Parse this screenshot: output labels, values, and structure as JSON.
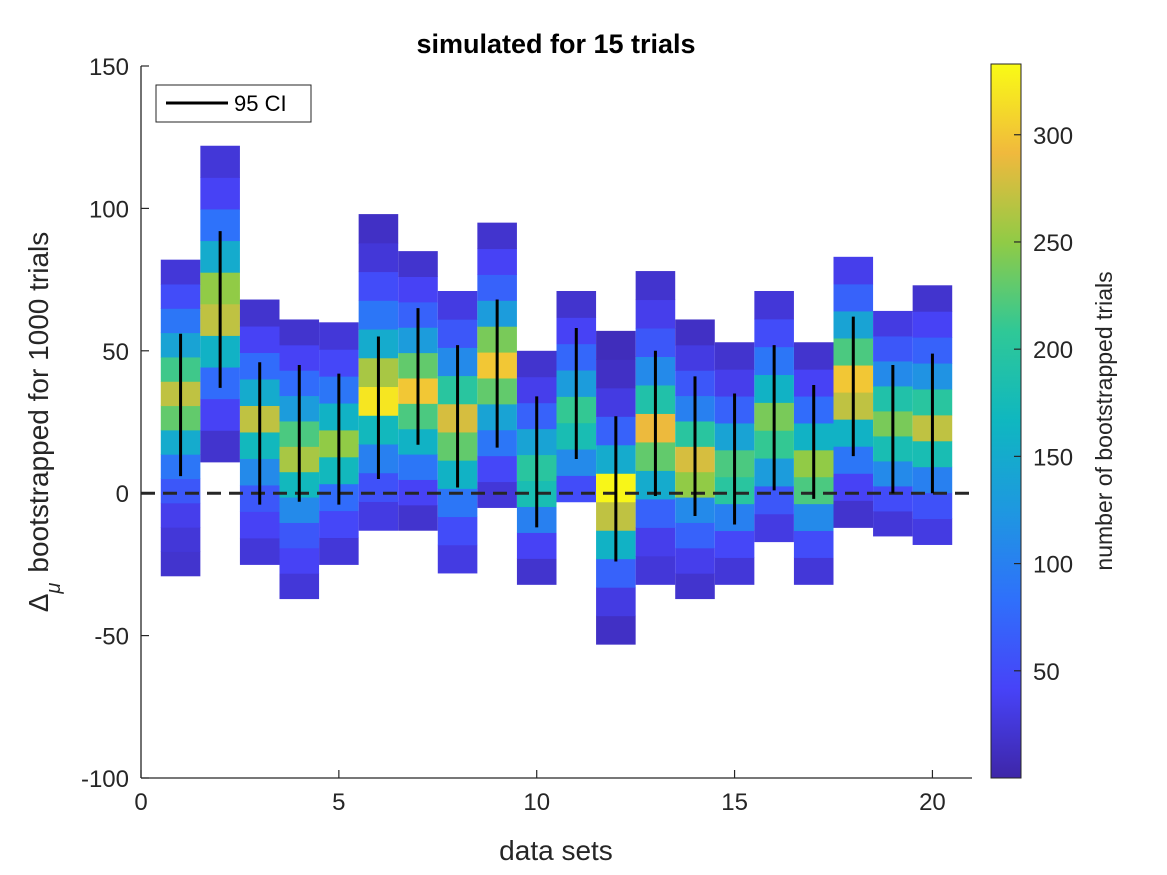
{
  "chart_data": {
    "type": "heatmap",
    "title": "simulated for 15 trials",
    "xlabel": "data sets",
    "ylabel_symbol": "Δ",
    "ylabel_subscript": "μ",
    "ylabel_text": "bootstrapped  for 1000 trials",
    "xlim": [
      0,
      21
    ],
    "ylim": [
      -100,
      150
    ],
    "xticks": [
      0,
      5,
      10,
      15,
      20
    ],
    "yticks": [
      -100,
      -50,
      0,
      50,
      100,
      150
    ],
    "reference_line_y": 0,
    "legend": {
      "label": "95 CI",
      "location": "top-left"
    },
    "colorbar": {
      "label": "number of bootstrapped trials",
      "range": [
        0,
        333
      ],
      "ticks": [
        50,
        100,
        150,
        200,
        250,
        300
      ]
    },
    "bar_width": 1.0,
    "datasets": [
      {
        "x": 1,
        "ymin": -29,
        "ymax": 82,
        "ci": [
          6,
          56
        ],
        "counts": [
          20,
          25,
          35,
          60,
          90,
          150,
          230,
          270,
          215,
          140,
          90,
          50,
          25
        ]
      },
      {
        "x": 2,
        "ymin": 11,
        "ymax": 122,
        "ci": [
          37,
          92
        ],
        "counts": [
          20,
          40,
          80,
          160,
          270,
          250,
          150,
          85,
          40,
          25
        ]
      },
      {
        "x": 3,
        "ymin": -25,
        "ymax": 68,
        "ci": [
          -4,
          46
        ],
        "counts": [
          25,
          40,
          60,
          110,
          170,
          270,
          150,
          80,
          40,
          20
        ]
      },
      {
        "x": 4,
        "ymin": -37,
        "ymax": 61,
        "ci": [
          -3,
          45
        ],
        "counts": [
          25,
          40,
          60,
          110,
          170,
          260,
          220,
          130,
          80,
          40,
          20
        ]
      },
      {
        "x": 5,
        "ymin": -25,
        "ymax": 60,
        "ci": [
          -4,
          42
        ],
        "counts": [
          25,
          45,
          80,
          170,
          250,
          160,
          90,
          45,
          25
        ]
      },
      {
        "x": 6,
        "ymin": -13,
        "ymax": 98,
        "ci": [
          5,
          55
        ],
        "counts": [
          30,
          55,
          100,
          170,
          320,
          260,
          150,
          90,
          50,
          25,
          15
        ]
      },
      {
        "x": 7,
        "ymin": -13,
        "ymax": 85,
        "ci": [
          17,
          65
        ],
        "counts": [
          20,
          40,
          90,
          160,
          220,
          300,
          230,
          130,
          70,
          40,
          20
        ]
      },
      {
        "x": 8,
        "ymin": -28,
        "ymax": 71,
        "ci": [
          2,
          52
        ],
        "counts": [
          30,
          50,
          90,
          160,
          230,
          280,
          200,
          110,
          60,
          30
        ]
      },
      {
        "x": 9,
        "ymin": -5,
        "ymax": 95,
        "ci": [
          16,
          68
        ],
        "counts": [
          25,
          45,
          90,
          140,
          230,
          300,
          240,
          130,
          70,
          40,
          20
        ]
      },
      {
        "x": 10,
        "ymin": -32,
        "ymax": 50,
        "ci": [
          -12,
          34
        ],
        "counts": [
          20,
          40,
          100,
          180,
          200,
          140,
          70,
          35,
          20
        ]
      },
      {
        "x": 11,
        "ymin": -3,
        "ymax": 71,
        "ci": [
          12,
          58
        ],
        "counts": [
          50,
          110,
          180,
          210,
          130,
          75,
          40,
          20
        ]
      },
      {
        "x": 12,
        "ymin": -53,
        "ymax": 57,
        "ci": [
          -24,
          27
        ],
        "counts": [
          15,
          30,
          70,
          160,
          270,
          330,
          150,
          70,
          30,
          15,
          10
        ]
      },
      {
        "x": 13,
        "ymin": -32,
        "ymax": 78,
        "ci": [
          -1,
          50
        ],
        "counts": [
          25,
          35,
          70,
          150,
          230,
          290,
          190,
          110,
          60,
          35,
          20
        ]
      },
      {
        "x": 14,
        "ymin": -37,
        "ymax": 61,
        "ci": [
          -8,
          41
        ],
        "counts": [
          20,
          35,
          70,
          110,
          250,
          280,
          200,
          100,
          60,
          30,
          15
        ]
      },
      {
        "x": 15,
        "ymin": -32,
        "ymax": 53,
        "ci": [
          -11,
          35
        ],
        "counts": [
          25,
          45,
          100,
          200,
          220,
          140,
          70,
          35,
          20
        ]
      },
      {
        "x": 16,
        "ymin": -17,
        "ymax": 71,
        "ci": [
          1,
          52
        ],
        "counts": [
          30,
          60,
          130,
          210,
          240,
          160,
          90,
          50,
          25
        ]
      },
      {
        "x": 17,
        "ymin": -32,
        "ymax": 53,
        "ci": [
          -2,
          38
        ],
        "counts": [
          25,
          50,
          110,
          220,
          250,
          160,
          80,
          40,
          20
        ]
      },
      {
        "x": 18,
        "ymin": -12,
        "ymax": 83,
        "ci": [
          13,
          62
        ],
        "counts": [
          20,
          40,
          90,
          160,
          270,
          300,
          220,
          140,
          70,
          35
        ]
      },
      {
        "x": 19,
        "ymin": -15,
        "ymax": 64,
        "ci": [
          0,
          45
        ],
        "counts": [
          25,
          50,
          110,
          180,
          240,
          190,
          110,
          60,
          30
        ]
      },
      {
        "x": 20,
        "ymin": -18,
        "ymax": 73,
        "ci": [
          0,
          49
        ],
        "counts": [
          30,
          55,
          100,
          180,
          270,
          200,
          120,
          70,
          40,
          20
        ]
      }
    ]
  }
}
